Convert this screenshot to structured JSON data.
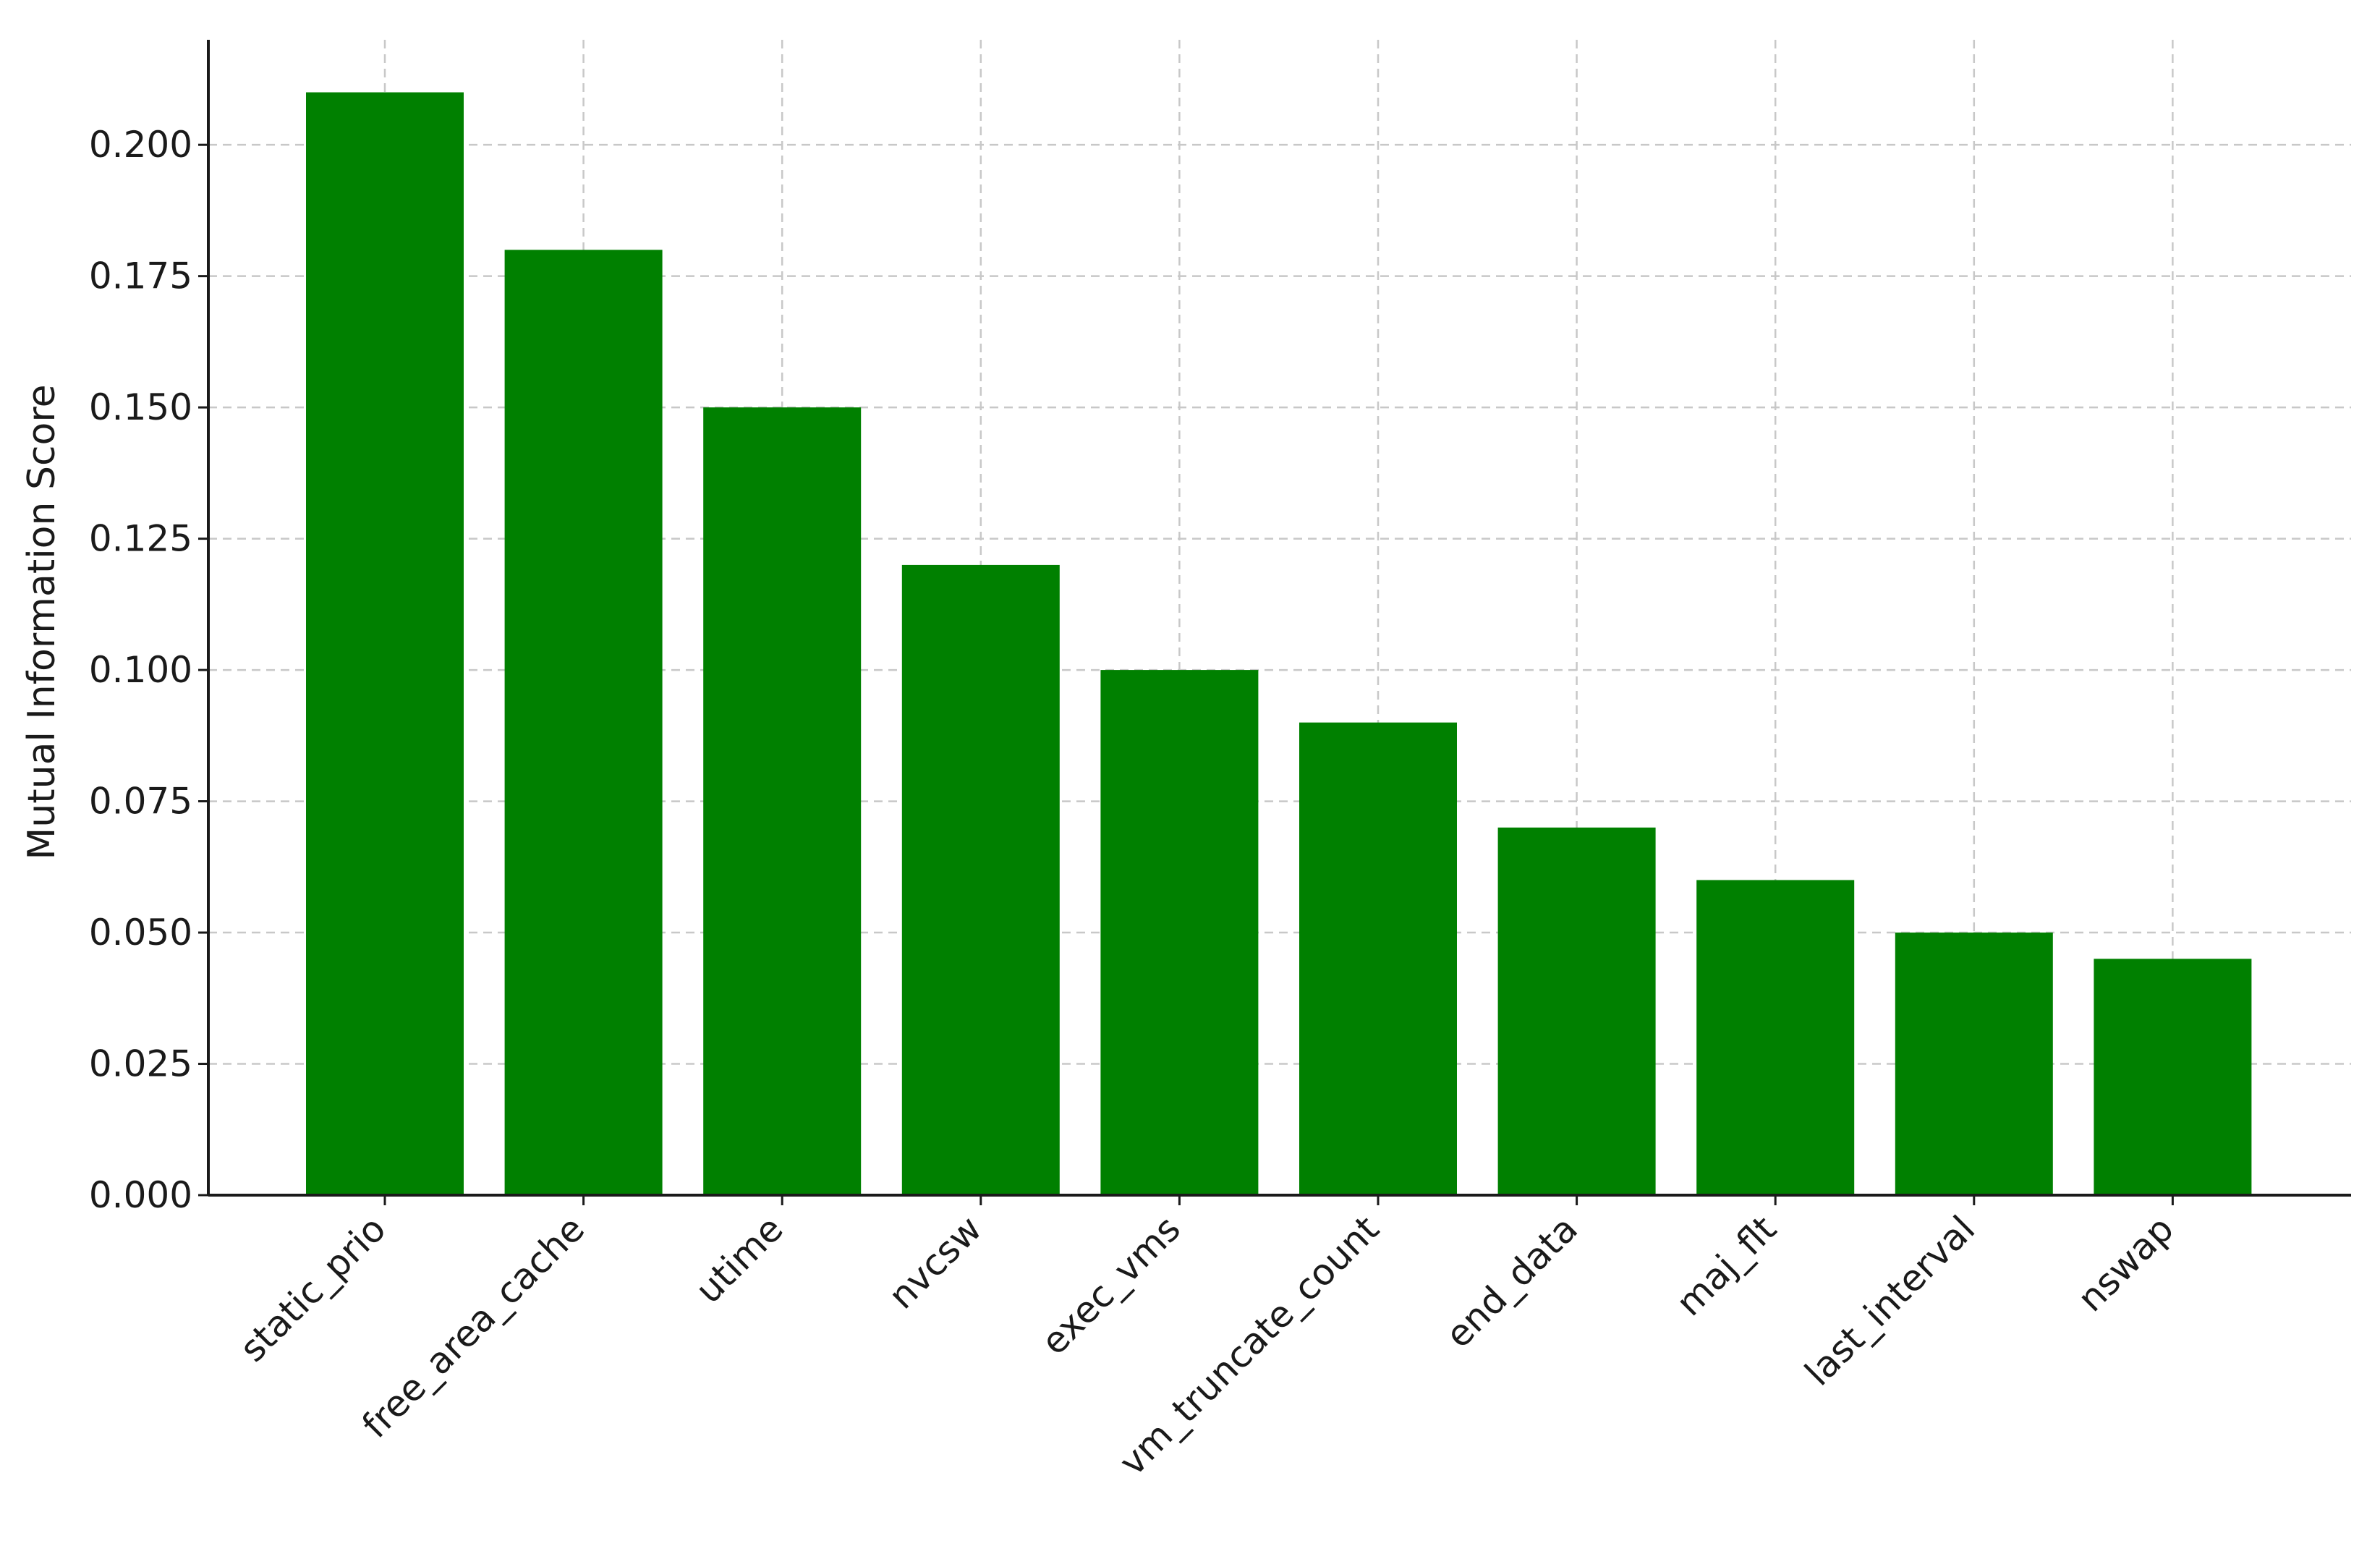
{
  "chart_data": {
    "type": "bar",
    "title": "",
    "xlabel": "",
    "ylabel": "Mutual Information Score",
    "categories": [
      "static_prio",
      "free_area_cache",
      "utime",
      "nvcsw",
      "exec_vms",
      "vm_truncate_count",
      "end_data",
      "maj_flt",
      "last_interval",
      "nswap"
    ],
    "values": [
      0.21,
      0.18,
      0.15,
      0.12,
      0.1,
      0.09,
      0.07,
      0.06,
      0.05,
      0.045
    ],
    "ylim": [
      0,
      0.22
    ],
    "yticks": [
      "0.000",
      "0.025",
      "0.050",
      "0.075",
      "0.100",
      "0.125",
      "0.150",
      "0.175",
      "0.200"
    ],
    "bar_color": "#008000",
    "grid": true,
    "xtick_rotation": -45
  }
}
